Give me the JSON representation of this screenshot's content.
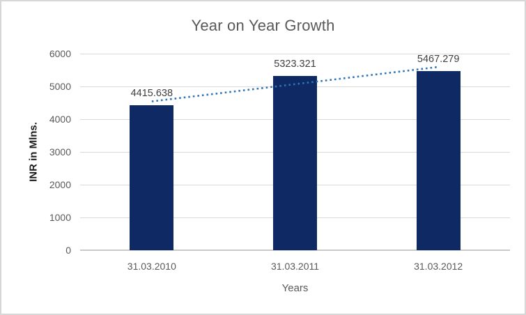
{
  "chart_data": {
    "type": "bar",
    "title": "Year on Year Growth",
    "xlabel": "Years",
    "ylabel": "INR in Mlns.",
    "categories": [
      "31.03.2010",
      "31.03.2011",
      "31.03.2012"
    ],
    "values": [
      4415.638,
      5323.321,
      5467.279
    ],
    "data_labels": [
      "4415.638",
      "5323.321",
      "5467.279"
    ],
    "ylim": [
      0,
      6000
    ],
    "ytick_step": 1000,
    "ytick_labels": [
      "0",
      "1000",
      "2000",
      "3000",
      "4000",
      "5000",
      "6000"
    ],
    "grid": true,
    "legend": "none",
    "trendline": {
      "type": "linear",
      "style": "dotted",
      "span": "first-to-last-category"
    },
    "colors": {
      "bar_fill": "#0e2963",
      "trendline": "#2e75b6",
      "gridline": "#d9d9d9",
      "axis_line": "#c9c9c9",
      "title_text": "#595959",
      "tick_text": "#595959",
      "data_label_text": "#404040",
      "y_axis_title_text": "#1c1c1c",
      "canvas_border": "#d7d7d7"
    }
  }
}
